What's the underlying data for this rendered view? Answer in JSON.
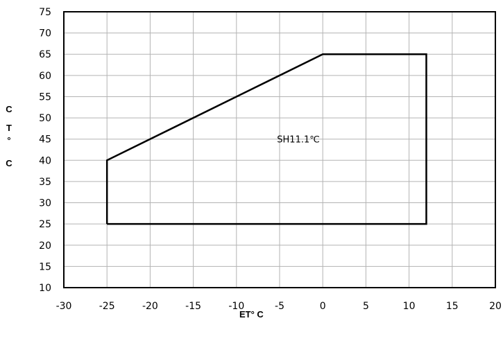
{
  "chart_data": {
    "type": "line",
    "title": "",
    "xlabel": "ET° C",
    "ylabel_lines": [
      "C",
      "T",
      "°",
      "C"
    ],
    "xlim": [
      -30,
      20
    ],
    "ylim": [
      10,
      75
    ],
    "x_ticks": [
      -30,
      -25,
      -20,
      -15,
      -10,
      -5,
      0,
      5,
      10,
      15,
      20
    ],
    "y_ticks": [
      10,
      15,
      20,
      25,
      30,
      35,
      40,
      45,
      50,
      55,
      60,
      65,
      70,
      75
    ],
    "grid": true,
    "series": [
      {
        "x": [
          -25,
          -25,
          0,
          12,
          12,
          -25
        ],
        "y": [
          25,
          40,
          65,
          65,
          25,
          25
        ],
        "color": "#000000"
      }
    ],
    "annotations": [
      {
        "text": "SH11.1℃",
        "x": -5.3,
        "y": 45
      }
    ]
  }
}
